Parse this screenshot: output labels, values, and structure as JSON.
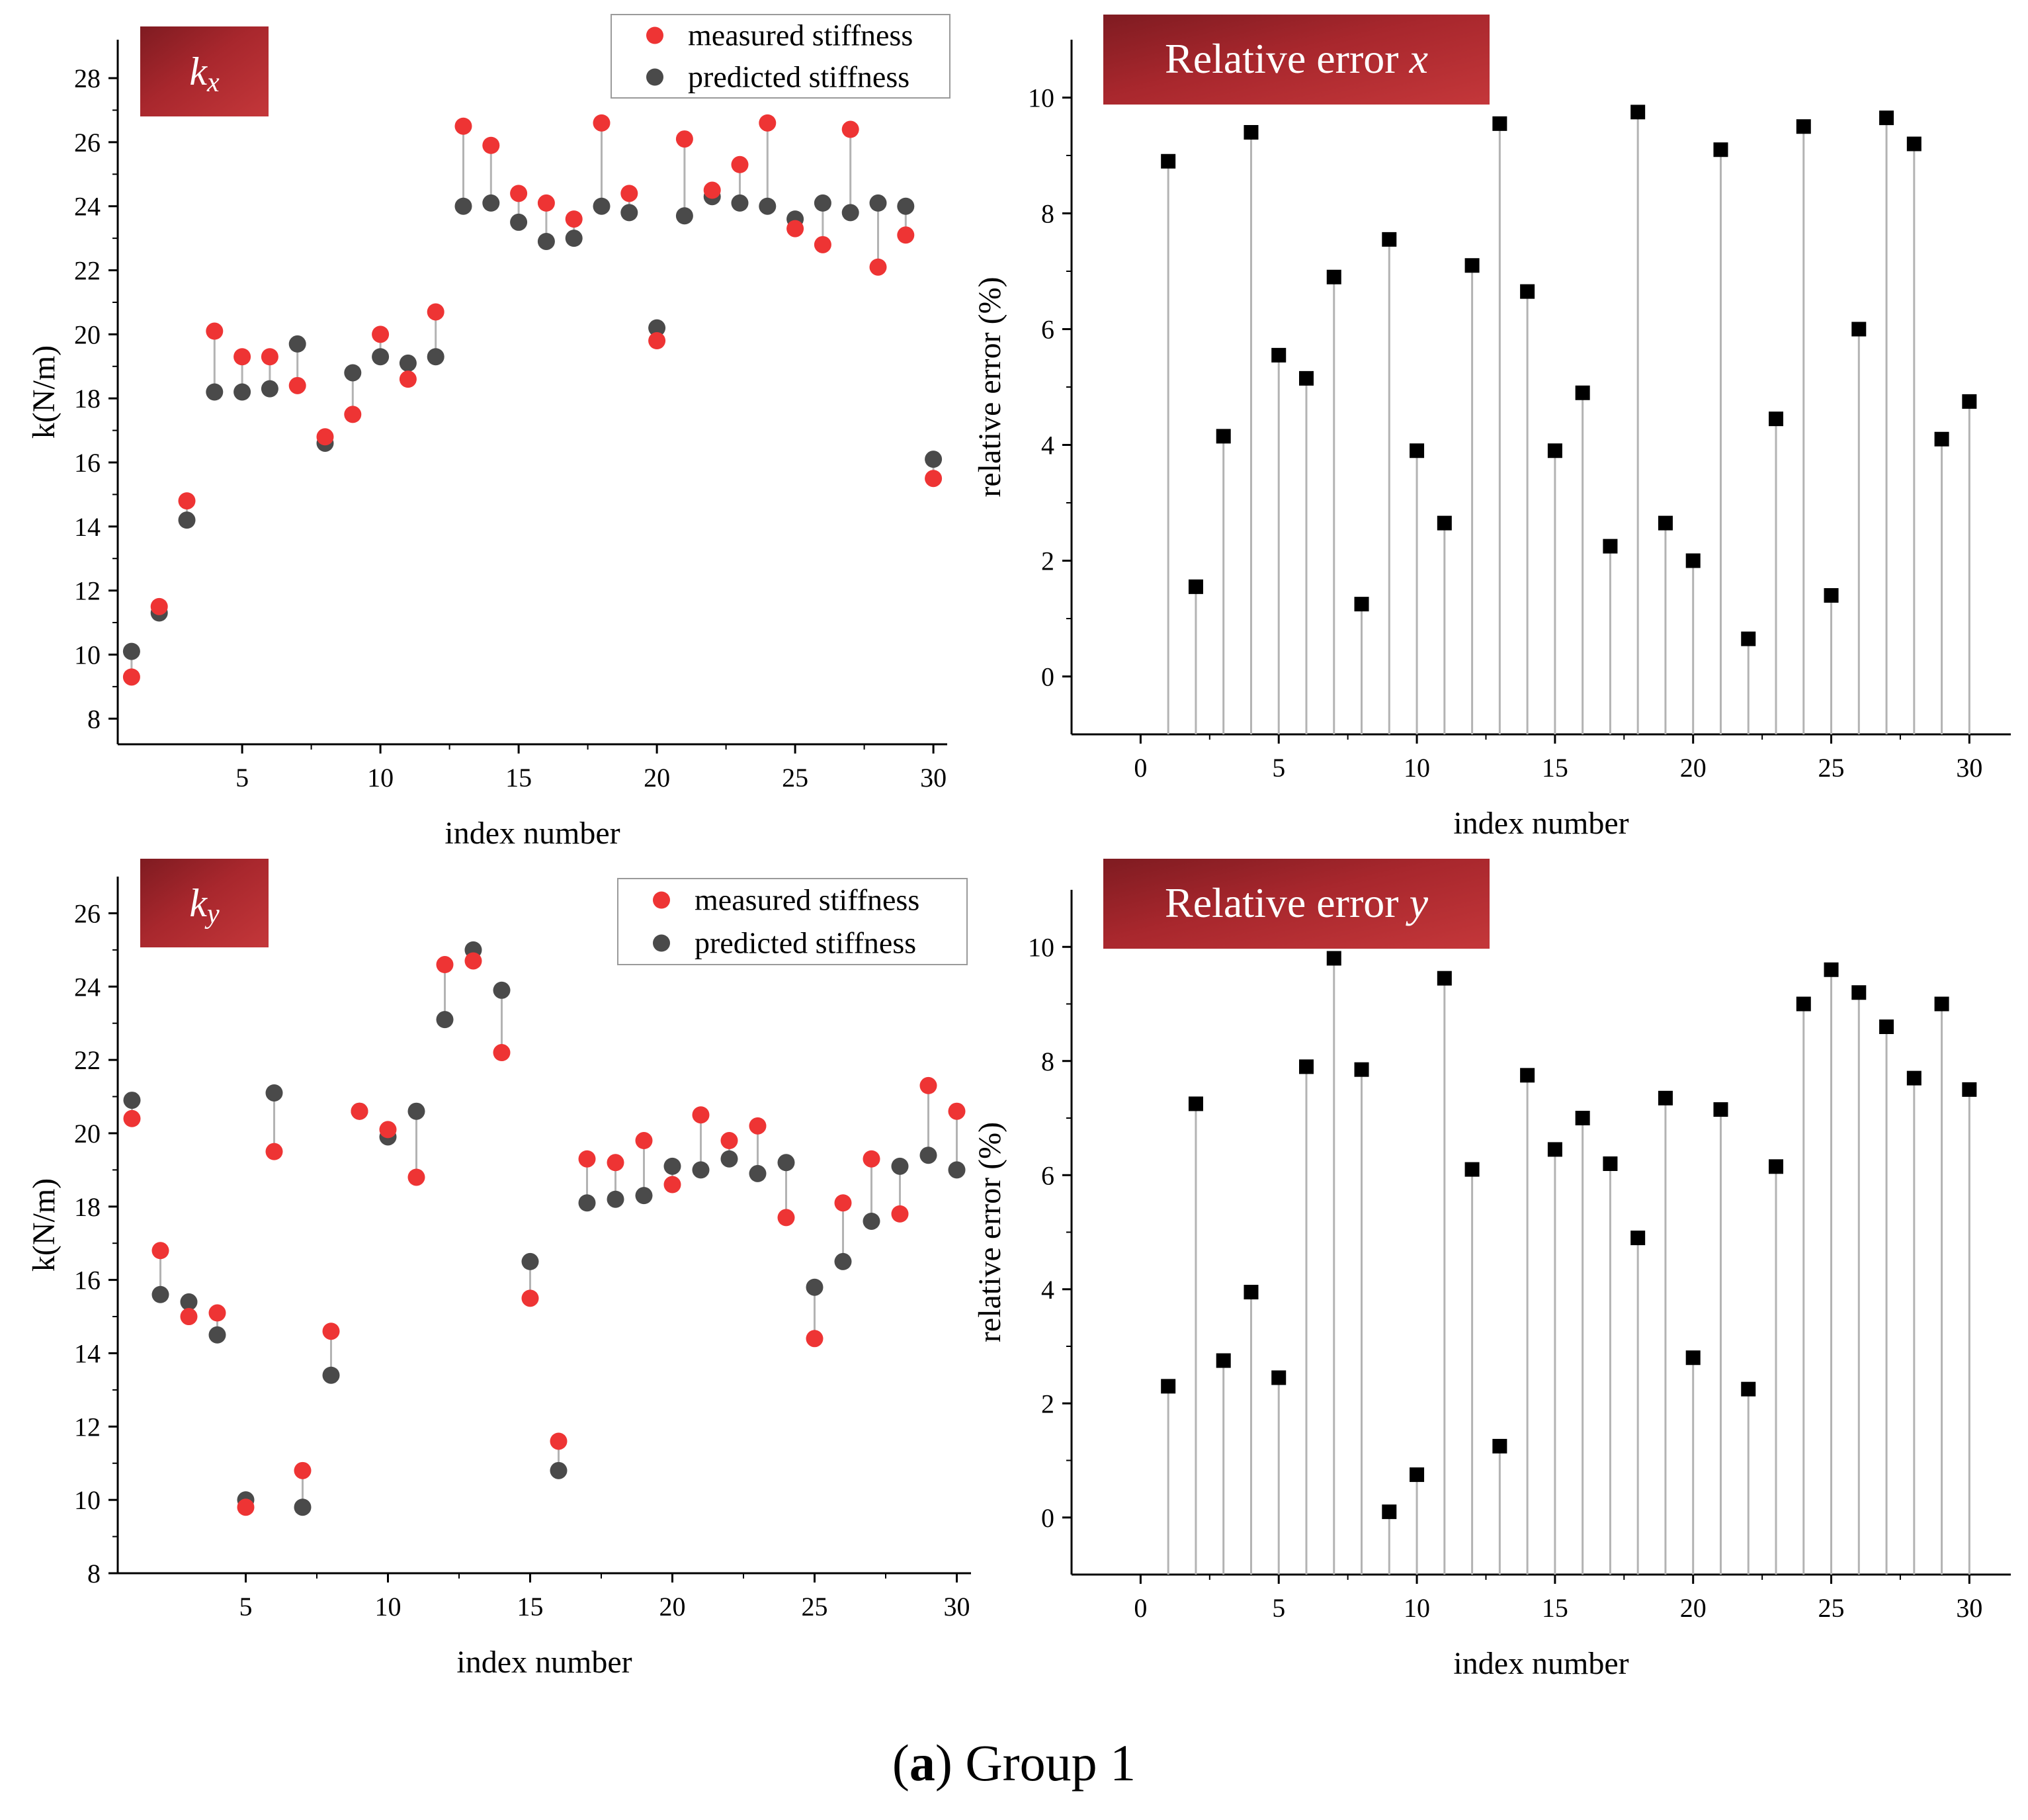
{
  "figure": {
    "caption_letter": "a",
    "caption_text": "Group 1",
    "colors": {
      "measured": "#ee3434",
      "predicted": "#4a4a4a",
      "stem": "#b3b3b3",
      "error_marker": "#000000",
      "title_box": "#a8272d",
      "title_text": "#ffffff"
    }
  },
  "chart_data": [
    {
      "id": "kx",
      "type": "scatter",
      "title_italic": "k",
      "title_sub": "x",
      "xlabel": "index number",
      "ylabel": "k(N/m)",
      "xlim": [
        0.5,
        30.5
      ],
      "ylim": [
        7.2,
        29.2
      ],
      "xticks": [
        5,
        10,
        15,
        20,
        25,
        30
      ],
      "yticks": [
        8,
        10,
        12,
        14,
        16,
        18,
        20,
        22,
        24,
        26,
        28
      ],
      "legend": [
        "measured stiffness",
        "predicted stiffness"
      ],
      "legend_position": "top-right",
      "x": [
        1,
        2,
        3,
        4,
        5,
        6,
        7,
        8,
        9,
        10,
        11,
        12,
        13,
        14,
        15,
        16,
        17,
        18,
        19,
        20,
        21,
        22,
        23,
        24,
        25,
        26,
        27,
        28,
        29,
        30
      ],
      "series": [
        {
          "name": "measured stiffness",
          "values": [
            9.3,
            11.5,
            14.8,
            20.1,
            19.3,
            19.3,
            18.4,
            16.8,
            17.5,
            20.0,
            18.6,
            20.7,
            26.5,
            25.9,
            24.4,
            24.1,
            23.6,
            26.6,
            24.4,
            19.8,
            26.1,
            24.5,
            25.3,
            26.6,
            23.3,
            22.8,
            26.4,
            22.1,
            23.1,
            15.5
          ]
        },
        {
          "name": "predicted stiffness",
          "values": [
            10.1,
            11.3,
            14.2,
            18.2,
            18.2,
            18.3,
            19.7,
            16.6,
            18.8,
            19.3,
            19.1,
            19.3,
            24.0,
            24.1,
            23.5,
            22.9,
            23.0,
            24.0,
            23.8,
            20.2,
            23.7,
            24.3,
            24.1,
            24.0,
            23.6,
            24.1,
            23.8,
            24.1,
            24.0,
            16.1
          ]
        }
      ]
    },
    {
      "id": "ex",
      "type": "stem",
      "title_text": "Relative error ",
      "title_italic": "x",
      "xlabel": "index number",
      "ylabel": "relative error (%)",
      "xlim": [
        -2.5,
        31.5
      ],
      "ylim": [
        -1,
        11
      ],
      "xticks": [
        0,
        5,
        10,
        15,
        20,
        25,
        30
      ],
      "yticks": [
        0,
        2,
        4,
        6,
        8,
        10
      ],
      "x": [
        1,
        2,
        3,
        4,
        5,
        6,
        7,
        8,
        9,
        10,
        11,
        12,
        13,
        14,
        15,
        16,
        17,
        18,
        19,
        20,
        21,
        22,
        23,
        24,
        25,
        26,
        27,
        28,
        29,
        30
      ],
      "values": [
        8.9,
        1.55,
        4.15,
        9.4,
        5.55,
        5.15,
        6.9,
        1.25,
        7.55,
        3.9,
        2.65,
        7.1,
        9.55,
        6.65,
        3.9,
        4.9,
        2.25,
        9.75,
        2.65,
        2.0,
        9.1,
        0.65,
        4.45,
        9.5,
        1.4,
        6.0,
        9.65,
        9.2,
        4.1,
        4.75
      ]
    },
    {
      "id": "ky",
      "type": "scatter",
      "title_italic": "k",
      "title_sub": "y",
      "xlabel": "index number",
      "ylabel": "k(N/m)",
      "xlim": [
        0.5,
        30.5
      ],
      "ylim": [
        8,
        27
      ],
      "xticks": [
        5,
        10,
        15,
        20,
        25,
        30
      ],
      "yticks": [
        8,
        10,
        12,
        14,
        16,
        18,
        20,
        22,
        24,
        26
      ],
      "legend": [
        "measured stiffness",
        "predicted stiffness"
      ],
      "legend_position": "top-right",
      "x": [
        1,
        2,
        3,
        4,
        5,
        6,
        7,
        8,
        9,
        10,
        11,
        12,
        13,
        14,
        15,
        16,
        17,
        18,
        19,
        20,
        21,
        22,
        23,
        24,
        25,
        26,
        27,
        28,
        29,
        30
      ],
      "series": [
        {
          "name": "measured stiffness",
          "values": [
            20.4,
            16.8,
            15.0,
            15.1,
            9.8,
            19.5,
            10.8,
            14.6,
            20.6,
            20.1,
            18.8,
            24.6,
            24.7,
            22.2,
            15.5,
            11.6,
            19.3,
            19.2,
            19.8,
            18.6,
            20.5,
            19.8,
            20.2,
            17.7,
            14.4,
            18.1,
            19.3,
            17.8,
            21.3,
            20.6
          ]
        },
        {
          "name": "predicted stiffness",
          "values": [
            20.9,
            15.6,
            15.4,
            14.5,
            10.0,
            21.1,
            9.8,
            13.4,
            20.6,
            19.9,
            20.6,
            23.1,
            25.0,
            23.9,
            16.5,
            10.8,
            18.1,
            18.2,
            18.3,
            19.1,
            19.0,
            19.3,
            18.9,
            19.2,
            15.8,
            16.5,
            17.6,
            19.1,
            19.4,
            19.0
          ]
        }
      ]
    },
    {
      "id": "ey",
      "type": "stem",
      "title_text": "Relative error ",
      "title_italic": "y",
      "xlabel": "index number",
      "ylabel": "relative error (%)",
      "xlim": [
        -2.5,
        31.5
      ],
      "ylim": [
        -1,
        11
      ],
      "xticks": [
        0,
        5,
        10,
        15,
        20,
        25,
        30
      ],
      "yticks": [
        0,
        2,
        4,
        6,
        8,
        10
      ],
      "x": [
        1,
        2,
        3,
        4,
        5,
        6,
        7,
        8,
        9,
        10,
        11,
        12,
        13,
        14,
        15,
        16,
        17,
        18,
        19,
        20,
        21,
        22,
        23,
        24,
        25,
        26,
        27,
        28,
        29,
        30
      ],
      "values": [
        2.3,
        7.25,
        2.75,
        3.95,
        2.45,
        7.9,
        9.8,
        7.85,
        0.1,
        0.75,
        9.45,
        6.1,
        1.25,
        7.75,
        6.45,
        7.0,
        6.2,
        4.9,
        7.35,
        2.8,
        7.15,
        2.25,
        6.15,
        9.0,
        9.6,
        9.2,
        8.6,
        7.7,
        9.0,
        7.5
      ]
    }
  ]
}
